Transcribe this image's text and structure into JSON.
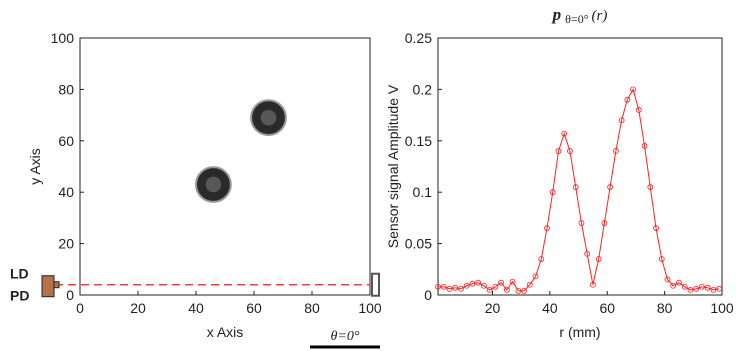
{
  "chart_data": [
    {
      "type": "image",
      "xlabel": "x Axis",
      "ylabel": "y Axis",
      "xlim": [
        0,
        100
      ],
      "ylim": [
        0,
        100
      ],
      "xticks": [
        0,
        20,
        40,
        60,
        80,
        100
      ],
      "yticks": [
        0,
        20,
        40,
        60,
        80,
        100
      ],
      "objects": [
        {
          "x": 65,
          "y": 69,
          "r": 6
        },
        {
          "x": 46,
          "y": 43,
          "r": 6
        }
      ],
      "beam_y": 4,
      "beam_color": "#ff3b3b",
      "source_labels": [
        "LD",
        "PD"
      ],
      "angle_label": "θ=0°"
    },
    {
      "type": "line",
      "title": {
        "symbol": "p",
        "subscript": "θ=0°",
        "argument": "(r)"
      },
      "xlabel": "r (mm)",
      "ylabel": "Sensor signal Amplitude V",
      "xlim": [
        1,
        100
      ],
      "ylim": [
        0,
        0.25
      ],
      "xticks": [
        20,
        40,
        60,
        80,
        100
      ],
      "yticks": [
        0,
        0.05,
        0.1,
        0.15,
        0.2,
        0.25
      ],
      "x": [
        1,
        3,
        5,
        7,
        9,
        11,
        13,
        15,
        17,
        19,
        21,
        23,
        25,
        27,
        29,
        31,
        33,
        35,
        37,
        39,
        41,
        43,
        45,
        47,
        49,
        51,
        53,
        55,
        57,
        59,
        61,
        63,
        65,
        67,
        69,
        71,
        73,
        75,
        77,
        79,
        81,
        83,
        85,
        87,
        89,
        91,
        93,
        95,
        97,
        99
      ],
      "series": [
        {
          "color": "#ff2020",
          "values": [
            0.008,
            0.008,
            0.006,
            0.007,
            0.006,
            0.009,
            0.011,
            0.012,
            0.009,
            0.005,
            0.008,
            0.012,
            0.005,
            0.013,
            0.004,
            0.004,
            0.01,
            0.018,
            0.035,
            0.065,
            0.1,
            0.14,
            0.157,
            0.14,
            0.105,
            0.07,
            0.04,
            0.01,
            0.035,
            0.07,
            0.105,
            0.14,
            0.17,
            0.19,
            0.2,
            0.18,
            0.145,
            0.105,
            0.065,
            0.035,
            0.015,
            0.009,
            0.012,
            0.008,
            0.005,
            0.006,
            0.008,
            0.007,
            0.005,
            0.006
          ]
        }
      ]
    }
  ]
}
